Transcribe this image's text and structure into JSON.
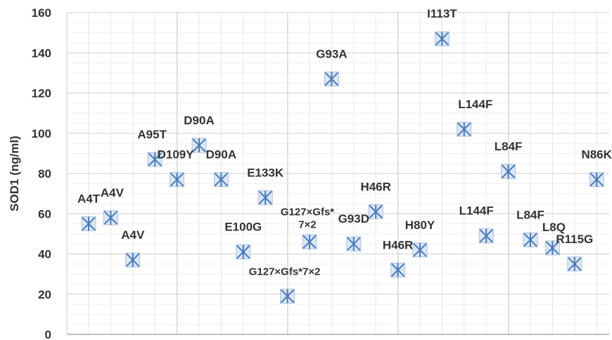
{
  "chart_data": {
    "type": "scatter",
    "title": "",
    "xlabel": "",
    "ylabel": "SOD1 (ng/ml)",
    "ylim": [
      0,
      160
    ],
    "yticks": [
      0,
      20,
      40,
      60,
      80,
      100,
      120,
      140,
      160
    ],
    "grid": true,
    "marker": "asterisk",
    "marker_color": "#4a7ab8",
    "points": [
      {
        "x": 1,
        "y": 55,
        "label": "A4T"
      },
      {
        "x": 2,
        "y": 58,
        "label": "A4V"
      },
      {
        "x": 3,
        "y": 37,
        "label": "A4V"
      },
      {
        "x": 4,
        "y": 87,
        "label": "A95T"
      },
      {
        "x": 5,
        "y": 77,
        "label": "D109Y"
      },
      {
        "x": 6,
        "y": 94,
        "label": "D90A"
      },
      {
        "x": 7,
        "y": 77,
        "label": "D90A"
      },
      {
        "x": 8,
        "y": 41,
        "label": "E100G"
      },
      {
        "x": 9,
        "y": 68,
        "label": "E133K"
      },
      {
        "x": 10,
        "y": 19,
        "label": "G127×Gfs*7×2"
      },
      {
        "x": 11,
        "y": 46,
        "label": "G127×Gfs*",
        "label2": "7×2"
      },
      {
        "x": 12,
        "y": 127,
        "label": "G93A"
      },
      {
        "x": 13,
        "y": 45,
        "label": "G93D"
      },
      {
        "x": 14,
        "y": 61,
        "label": "H46R"
      },
      {
        "x": 15,
        "y": 32,
        "label": "H46R"
      },
      {
        "x": 16,
        "y": 42,
        "label": "H80Y"
      },
      {
        "x": 17,
        "y": 147,
        "label": "I113T"
      },
      {
        "x": 18,
        "y": 102,
        "label": "L144F"
      },
      {
        "x": 19,
        "y": 49,
        "label": "L144F"
      },
      {
        "x": 20,
        "y": 81,
        "label": "L84F"
      },
      {
        "x": 21,
        "y": 47,
        "label": "L84F"
      },
      {
        "x": 22,
        "y": 43,
        "label": "L8Q"
      },
      {
        "x": 23,
        "y": 35,
        "label": "R115G"
      },
      {
        "x": 24,
        "y": 77,
        "label": "N86K"
      }
    ]
  }
}
